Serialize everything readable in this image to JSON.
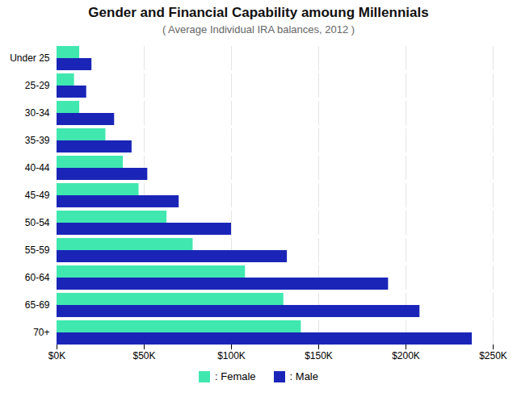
{
  "chart_data": {
    "type": "bar",
    "orientation": "horizontal",
    "title": "Gender and Financial Capability amoung Millennials",
    "subtitle": "( Average Individual IRA balances, 2012 )",
    "categories": [
      "Under 25",
      "25-29",
      "30-34",
      "35-39",
      "40-44",
      "45-49",
      "50-54",
      "55-59",
      "60-64",
      "65-69",
      "70+"
    ],
    "series": [
      {
        "name": ": Female",
        "color": "#40e8b0",
        "values": [
          13000,
          10000,
          13000,
          28000,
          38000,
          47000,
          63000,
          78000,
          108000,
          130000,
          140000
        ]
      },
      {
        "name": ": Male",
        "color": "#1a25b8",
        "values": [
          20000,
          17000,
          33000,
          43000,
          52000,
          70000,
          100000,
          132000,
          190000,
          208000,
          238000
        ]
      }
    ],
    "xlim": [
      0,
      250000
    ],
    "xticks": [
      {
        "value": 0,
        "label": "$0K"
      },
      {
        "value": 50000,
        "label": "$50K"
      },
      {
        "value": 100000,
        "label": "$100K"
      },
      {
        "value": 150000,
        "label": "$150K"
      },
      {
        "value": 200000,
        "label": "$200K"
      },
      {
        "value": 250000,
        "label": "$250K"
      }
    ],
    "grid": true,
    "legend": "bottom"
  }
}
